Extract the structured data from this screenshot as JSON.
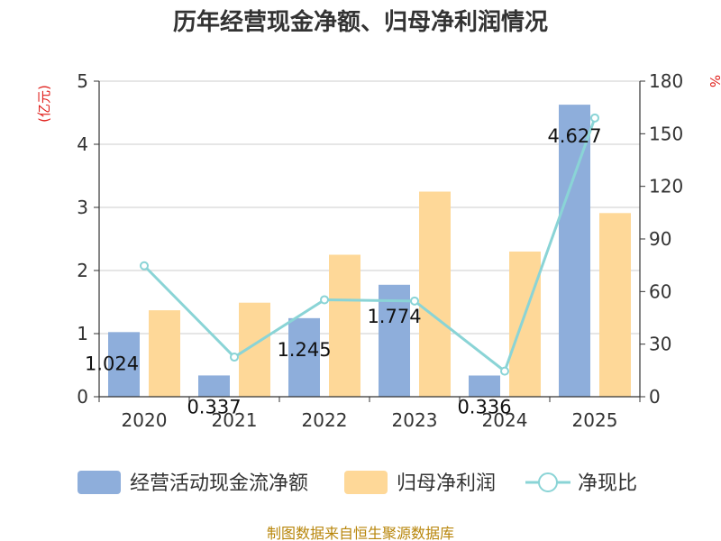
{
  "chart_data": {
    "type": "bar",
    "title": "历年经营现金净额、归母净利润情况",
    "categories": [
      "2020",
      "2021",
      "2022",
      "2023",
      "2024",
      "2025"
    ],
    "series": [
      {
        "name": "经营活动现金流净额",
        "type": "bar",
        "axis": "left",
        "color": "#8eaedb",
        "values": [
          1.024,
          0.337,
          1.245,
          1.774,
          0.336,
          4.627
        ],
        "labels": [
          "1.024",
          "0.337",
          "1.245",
          "1.774",
          "0.336",
          "4.627"
        ]
      },
      {
        "name": "归母净利润",
        "type": "bar",
        "axis": "left",
        "color": "#fed898",
        "values": [
          1.37,
          1.49,
          2.25,
          3.25,
          2.3,
          2.91
        ]
      },
      {
        "name": "净现比",
        "type": "line",
        "axis": "right",
        "color": "#8ad4d6",
        "values": [
          74.7,
          22.6,
          55.3,
          54.6,
          14.6,
          159
        ]
      }
    ],
    "y_left": {
      "unit": "(亿元)",
      "ylim": [
        0,
        5
      ],
      "ticks": [
        "0",
        "1",
        "2",
        "3",
        "4",
        "5"
      ]
    },
    "y_right": {
      "unit": "%",
      "ylim": [
        0,
        180
      ],
      "ticks": [
        "0",
        "30",
        "60",
        "90",
        "120",
        "150",
        "180"
      ]
    },
    "grid": true,
    "legend": "bottom",
    "source": "制图数据来自恒生聚源数据库"
  }
}
